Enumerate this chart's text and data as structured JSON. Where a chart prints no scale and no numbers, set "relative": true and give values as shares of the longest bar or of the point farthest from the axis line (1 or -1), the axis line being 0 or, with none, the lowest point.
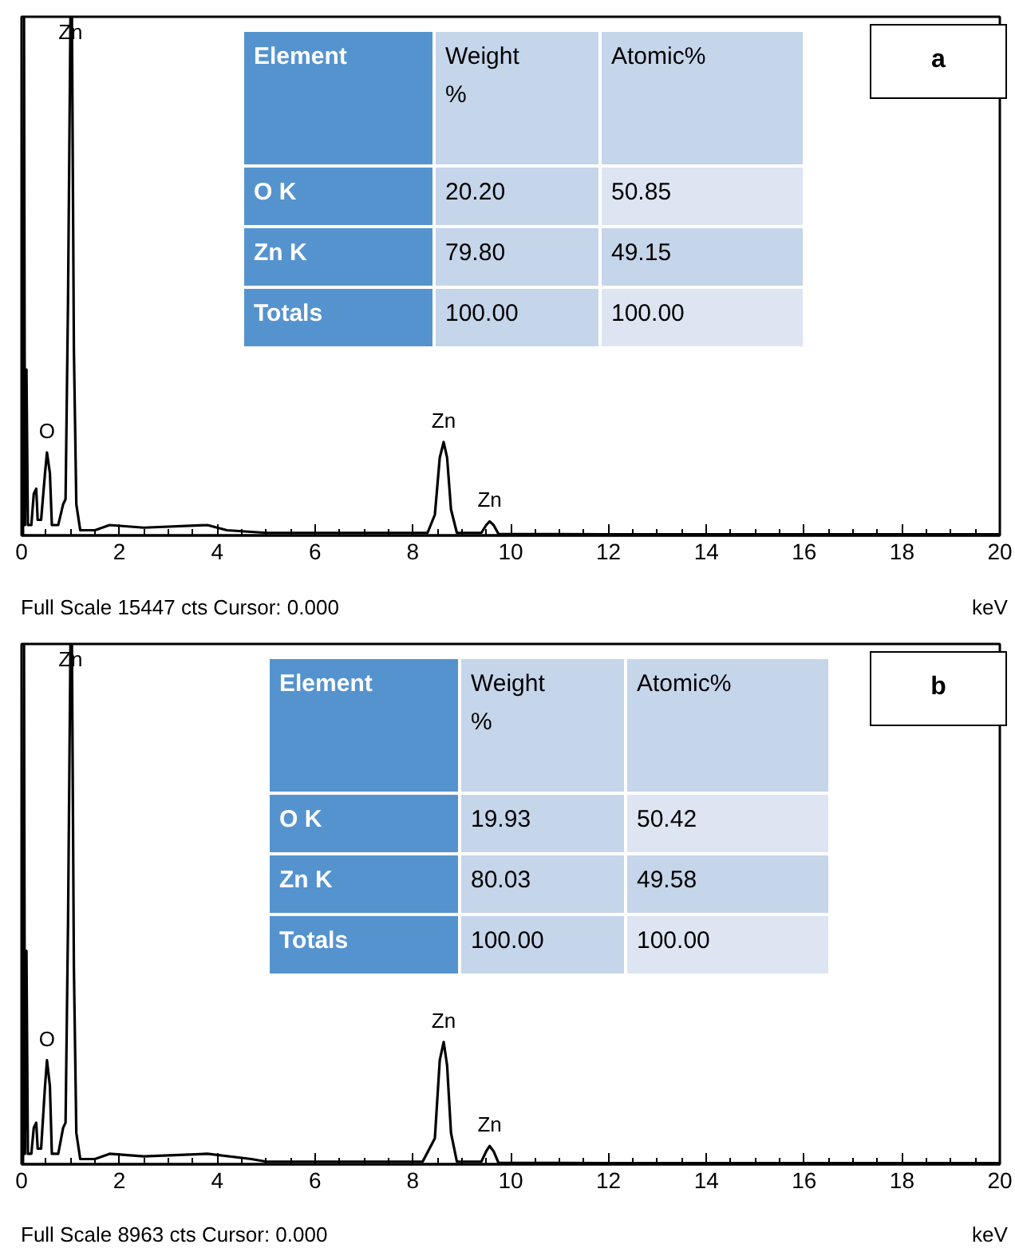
{
  "chart_data": [
    {
      "type": "line",
      "title": "a",
      "xlabel": "keV",
      "relative": true,
      "xlim": [
        0,
        20
      ],
      "xticks": [
        0,
        2,
        4,
        6,
        8,
        10,
        12,
        14,
        16,
        18,
        20
      ],
      "x": [
        0,
        0.03,
        0.05,
        0.07,
        0.1,
        0.13,
        0.2,
        0.25,
        0.3,
        0.33,
        0.4,
        0.48,
        0.52,
        0.58,
        0.62,
        0.75,
        0.85,
        0.9,
        0.95,
        1.0,
        1.03,
        1.07,
        1.12,
        1.2,
        1.5,
        1.8,
        2.5,
        3.8,
        4.2,
        5,
        7,
        8.3,
        8.45,
        8.55,
        8.63,
        8.7,
        8.78,
        8.9,
        9.4,
        9.5,
        9.57,
        9.65,
        9.75,
        12,
        20
      ],
      "series": [
        {
          "color": "#000000",
          "values": [
            0,
            0,
            1,
            0.02,
            0.32,
            0.02,
            0.02,
            0.08,
            0.09,
            0.03,
            0.03,
            0.12,
            0.16,
            0.12,
            0.02,
            0.02,
            0.06,
            0.07,
            0.45,
            1,
            1,
            0.36,
            0.06,
            0.01,
            0.01,
            0.02,
            0.015,
            0.02,
            0.01,
            0.005,
            0.005,
            0.005,
            0.04,
            0.15,
            0.18,
            0.15,
            0.05,
            0.005,
            0.005,
            0.02,
            0.027,
            0.02,
            0.003,
            0.002,
            0.002
          ]
        }
      ],
      "annotations": [
        {
          "text": "Zn",
          "x": 1.0,
          "y": 1
        },
        {
          "text": "O",
          "x": 0.52,
          "y": 0.16
        },
        {
          "text": "Zn",
          "x": 8.63,
          "y": 0.18
        },
        {
          "text": "Zn",
          "x": 9.57,
          "y": 0.027
        },
        "Element",
        "Weight\n%",
        "Atomic%",
        "O K",
        "20.20",
        "50.85",
        "Zn K",
        "79.80",
        "49.15",
        "Totals",
        "100.00",
        " 100.00",
        "Full Scale 15447 cts Cursor: 0.000"
      ]
    },
    {
      "type": "line",
      "title": "b",
      "xlabel": "keV",
      "relative": true,
      "xlim": [
        0,
        20
      ],
      "xticks": [
        0,
        2,
        4,
        6,
        8,
        10,
        12,
        14,
        16,
        18,
        20
      ],
      "x": [
        0,
        0.03,
        0.05,
        0.07,
        0.1,
        0.13,
        0.2,
        0.25,
        0.3,
        0.33,
        0.4,
        0.48,
        0.52,
        0.58,
        0.62,
        0.75,
        0.85,
        0.9,
        0.95,
        1.0,
        1.03,
        1.07,
        1.12,
        1.2,
        1.5,
        1.8,
        2.5,
        3.8,
        4.7,
        5,
        7,
        8.2,
        8.45,
        8.55,
        8.63,
        8.7,
        8.78,
        8.9,
        9.4,
        9.5,
        9.57,
        9.65,
        9.75,
        12,
        20
      ],
      "series": [
        {
          "color": "#000000",
          "values": [
            0,
            0,
            1,
            0.02,
            0.41,
            0.02,
            0.02,
            0.07,
            0.08,
            0.03,
            0.03,
            0.15,
            0.2,
            0.15,
            0.02,
            0.02,
            0.07,
            0.08,
            0.46,
            1,
            1,
            0.38,
            0.06,
            0.01,
            0.01,
            0.02,
            0.015,
            0.02,
            0.01,
            0.005,
            0.005,
            0.005,
            0.05,
            0.2,
            0.235,
            0.19,
            0.06,
            0.005,
            0.005,
            0.025,
            0.035,
            0.025,
            0.003,
            0.002,
            0.002
          ]
        }
      ],
      "annotations": [
        {
          "text": "Zn",
          "x": 1.0,
          "y": 1
        },
        {
          "text": "O",
          "x": 0.52,
          "y": 0.2
        },
        {
          "text": "Zn",
          "x": 8.63,
          "y": 0.235
        },
        {
          "text": "Zn",
          "x": 9.57,
          "y": 0.035
        },
        "Element",
        "Weight\n%",
        "Atomic%",
        "O K",
        "19.93",
        "50.42",
        "Zn K",
        "80.03",
        "49.58",
        "Totals",
        "100.00",
        " 100.00",
        "Full Scale 8963 cts Cursor: 0.000"
      ]
    }
  ]
}
